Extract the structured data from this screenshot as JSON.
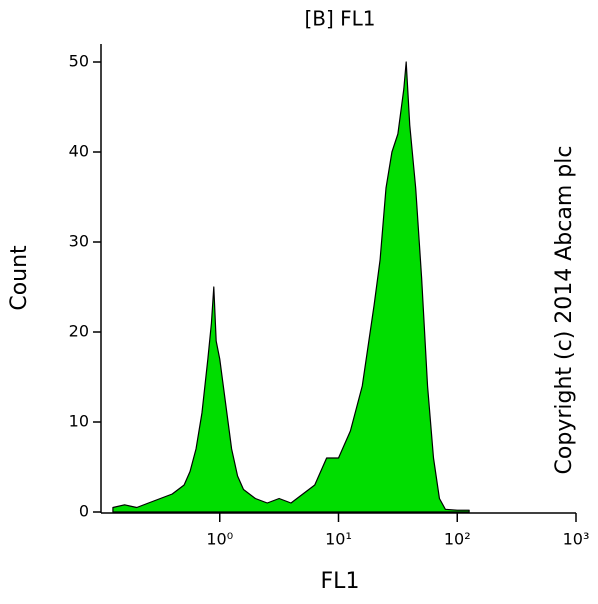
{
  "chart_data": {
    "type": "area",
    "title": "[B] FL1",
    "xlabel": "FL1",
    "ylabel": "Count",
    "annotation": "Copyright (c) 2014 Abcam plc",
    "xscale": "log",
    "xlim": [
      0.1,
      1000
    ],
    "ylim": [
      0,
      52
    ],
    "xticks": [
      {
        "value": 1,
        "label": "10⁰"
      },
      {
        "value": 10,
        "label": "10¹"
      },
      {
        "value": 100,
        "label": "10²"
      },
      {
        "value": 1000,
        "label": "10³"
      }
    ],
    "yticks": [
      0,
      10,
      20,
      30,
      40,
      50
    ],
    "color": "#00dd00",
    "line_color": "#000000",
    "x": [
      0.126,
      0.158,
      0.2,
      0.251,
      0.316,
      0.398,
      0.501,
      0.562,
      0.631,
      0.708,
      0.794,
      0.851,
      0.891,
      0.933,
      1.0,
      1.122,
      1.259,
      1.413,
      1.585,
      1.995,
      2.512,
      3.162,
      3.981,
      5.012,
      6.31,
      7.943,
      10,
      12.59,
      15.85,
      19.95,
      22.39,
      25.12,
      28.18,
      31.62,
      35.48,
      37.15,
      39.81,
      44.67,
      50.12,
      56.23,
      63.1,
      70.79,
      79.43,
      100,
      125.9
    ],
    "values": [
      0.5,
      0.8,
      0.5,
      1,
      1.5,
      2,
      3,
      4.5,
      7,
      11,
      17,
      21,
      25,
      19,
      17,
      12,
      7,
      4,
      2.5,
      1.5,
      1,
      1.5,
      1,
      2,
      3,
      6,
      6,
      9,
      14,
      23,
      28,
      36,
      40,
      42,
      47,
      50,
      43,
      36,
      26,
      14,
      6,
      1.5,
      0.3,
      0.2,
      0.2
    ]
  }
}
